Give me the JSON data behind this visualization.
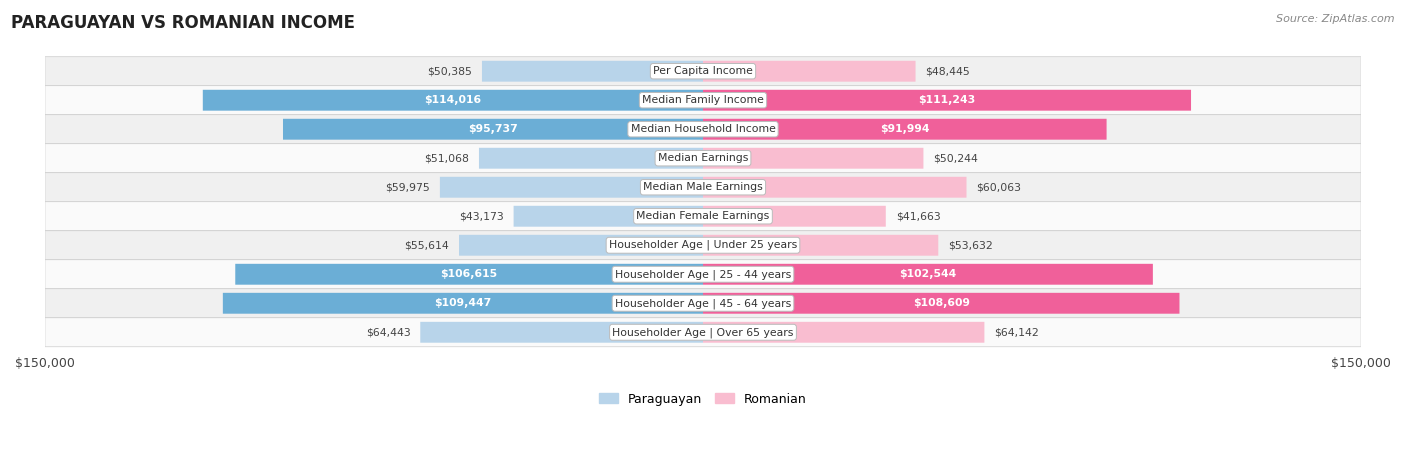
{
  "title": "PARAGUAYAN VS ROMANIAN INCOME",
  "source": "Source: ZipAtlas.com",
  "categories": [
    "Per Capita Income",
    "Median Family Income",
    "Median Household Income",
    "Median Earnings",
    "Median Male Earnings",
    "Median Female Earnings",
    "Householder Age | Under 25 years",
    "Householder Age | 25 - 44 years",
    "Householder Age | 45 - 64 years",
    "Householder Age | Over 65 years"
  ],
  "paraguayan_values": [
    50385,
    114016,
    95737,
    51068,
    59975,
    43173,
    55614,
    106615,
    109447,
    64443
  ],
  "romanian_values": [
    48445,
    111243,
    91994,
    50244,
    60063,
    41663,
    53632,
    102544,
    108609,
    64142
  ],
  "paraguayan_labels": [
    "$50,385",
    "$114,016",
    "$95,737",
    "$51,068",
    "$59,975",
    "$43,173",
    "$55,614",
    "$106,615",
    "$109,447",
    "$64,443"
  ],
  "romanian_labels": [
    "$48,445",
    "$111,243",
    "$91,994",
    "$50,244",
    "$60,063",
    "$41,663",
    "$53,632",
    "$102,544",
    "$108,609",
    "$64,142"
  ],
  "paraguayan_color_light": "#b8d4ea",
  "paraguayan_color_dark": "#6baed6",
  "romanian_color_light": "#f9bdd0",
  "romanian_color_dark": "#f0609a",
  "inside_label_threshold": 0.45,
  "max_value": 150000,
  "bar_height": 0.72,
  "row_bg_even": "#f0f0f0",
  "row_bg_odd": "#fafafa",
  "title_fontsize": 12,
  "label_fontsize": 7.8,
  "value_fontsize": 7.8,
  "axis_label": "$150,000",
  "legend_paraguayan": "Paraguayan",
  "legend_romanian": "Romanian",
  "inside_label_color": "white",
  "outside_label_color": "#444444"
}
